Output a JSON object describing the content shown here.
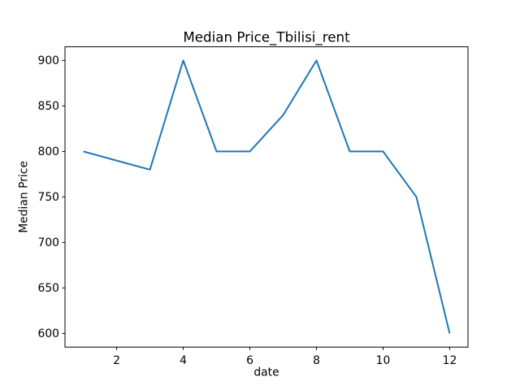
{
  "chart_data": {
    "type": "line",
    "title": "Median Price_Tbilisi_rent",
    "xlabel": "date",
    "ylabel": "Median Price",
    "x": [
      1,
      2,
      3,
      4,
      5,
      6,
      7,
      8,
      9,
      10,
      11,
      12
    ],
    "y": [
      800,
      790,
      780,
      900,
      800,
      800,
      840,
      900,
      800,
      800,
      750,
      600
    ],
    "xticks": [
      2,
      4,
      6,
      8,
      10,
      12
    ],
    "yticks": [
      600,
      650,
      700,
      750,
      800,
      850,
      900
    ],
    "xlim": [
      0.45,
      12.55
    ],
    "ylim": [
      585,
      915
    ],
    "line_color": "#1f77b4",
    "background_color": "#ffffff",
    "grid": false,
    "legend": null
  }
}
